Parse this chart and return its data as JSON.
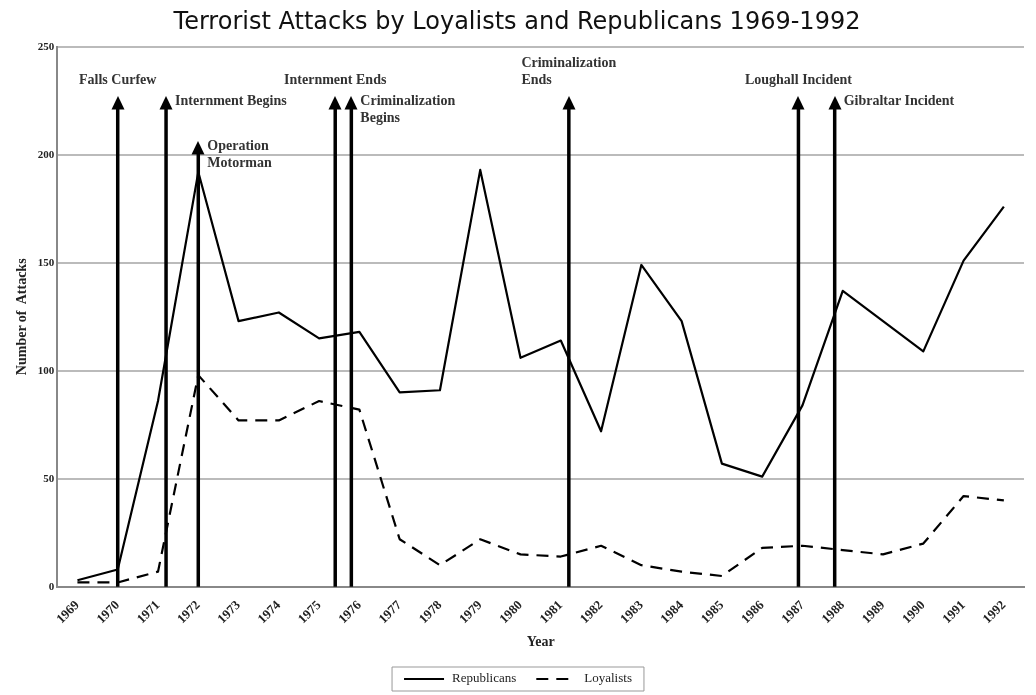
{
  "chart_data": {
    "type": "line",
    "title": "Terrorist Attacks by Loyalists and Republicans 1969-1992",
    "xlabel": "Year",
    "ylabel": "Number of  Attacks",
    "x": [
      1969,
      1970,
      1971,
      1972,
      1973,
      1974,
      1975,
      1976,
      1977,
      1978,
      1979,
      1980,
      1981,
      1982,
      1983,
      1984,
      1985,
      1986,
      1987,
      1988,
      1989,
      1990,
      1991,
      1992
    ],
    "series": [
      {
        "name": "Republicans",
        "color": "#000000",
        "line_style": "solid",
        "values": [
          3,
          8,
          86,
          192,
          123,
          127,
          115,
          118,
          90,
          91,
          193,
          106,
          114,
          72,
          149,
          123,
          57,
          51,
          84,
          137,
          123,
          109,
          151,
          176
        ]
      },
      {
        "name": "Loyalists",
        "color": "#000000",
        "line_style": "dashed",
        "values": [
          2,
          2,
          7,
          98,
          77,
          77,
          86,
          82,
          22,
          10,
          22,
          15,
          14,
          19,
          10,
          7,
          5,
          18,
          19,
          17,
          15,
          20,
          42,
          40
        ]
      }
    ],
    "xlim": [
      1968.5,
      1992.5
    ],
    "xticks": [
      1969,
      1970,
      1971,
      1972,
      1973,
      1974,
      1975,
      1976,
      1977,
      1978,
      1979,
      1980,
      1981,
      1982,
      1983,
      1984,
      1985,
      1986,
      1987,
      1988,
      1989,
      1990,
      1991,
      1992
    ],
    "ylim": [
      0,
      250
    ],
    "yticks": [
      0,
      50,
      100,
      150,
      200,
      250
    ],
    "grid": "y",
    "legend": "bottom",
    "marker": "none",
    "ref_lines": [
      {
        "axis": "x",
        "value": 1970.0,
        "label": "Falls Curfew"
      },
      {
        "axis": "x",
        "value": 1971.2,
        "label": "Internment Begins"
      },
      {
        "axis": "x",
        "value": 1972.0,
        "label": "Operation Motorman"
      },
      {
        "axis": "x",
        "value": 1975.4,
        "label": "Internment Ends"
      },
      {
        "axis": "x",
        "value": 1975.8,
        "label": "Criminalization Begins"
      },
      {
        "axis": "x",
        "value": 1981.2,
        "label": "Criminalization Ends"
      },
      {
        "axis": "x",
        "value": 1986.9,
        "label": "Loughall Incident"
      },
      {
        "axis": "x",
        "value": 1987.8,
        "label": "Gibraltar Incident"
      }
    ]
  }
}
